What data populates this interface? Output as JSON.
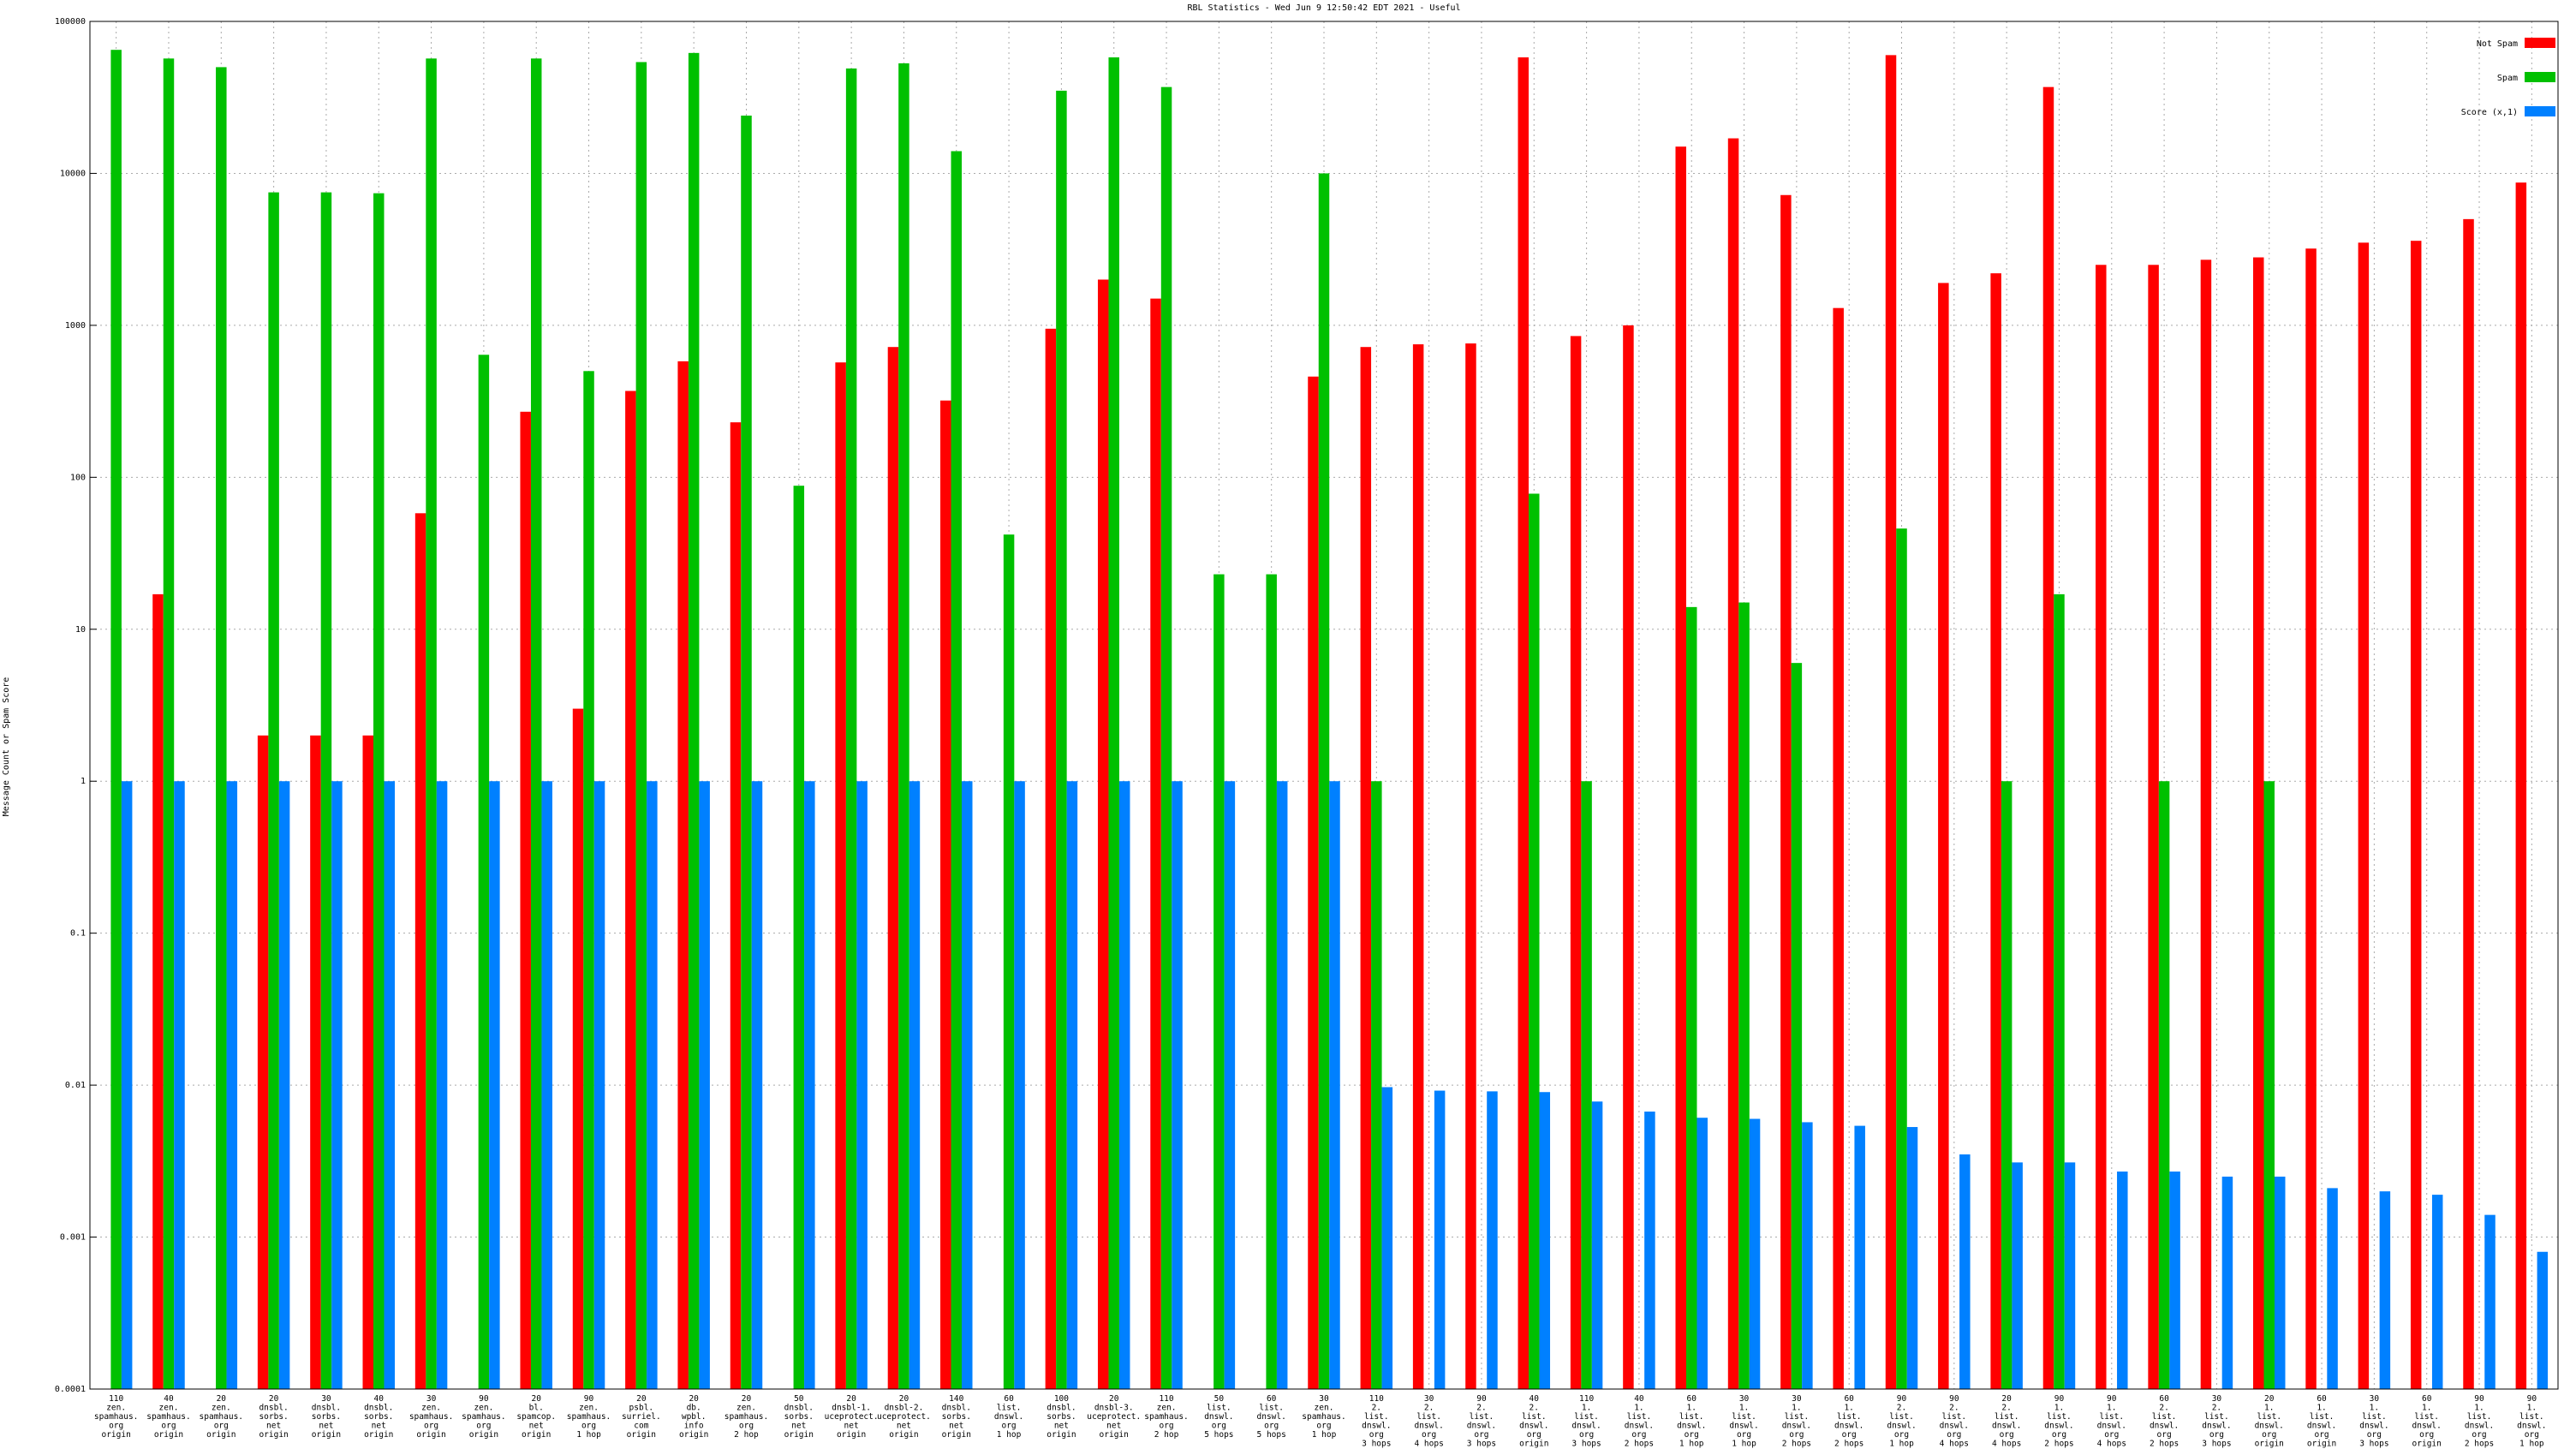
{
  "chart_data": {
    "type": "bar",
    "title": "RBL Statistics - Wed Jun  9 12:50:42 EDT 2021 - Useful",
    "y_label": "Message Count or Spam Score",
    "log_scale": true,
    "grid": true,
    "legend_position": "upper right",
    "ylim": [
      0.0001,
      100000
    ],
    "yticks": [
      0.0001,
      0.001,
      0.01,
      0.1,
      1,
      10,
      100,
      1000,
      10000,
      100000
    ],
    "categories": [
      [
        "110",
        "zen.",
        "spamhaus.",
        "org",
        "origin"
      ],
      [
        "40",
        "zen.",
        "spamhaus.",
        "org",
        "origin"
      ],
      [
        "20",
        "zen.",
        "spamhaus.",
        "org",
        "origin"
      ],
      [
        "20",
        "dnsbl.",
        "sorbs.",
        "net",
        "origin"
      ],
      [
        "30",
        "dnsbl.",
        "sorbs.",
        "net",
        "origin"
      ],
      [
        "40",
        "dnsbl.",
        "sorbs.",
        "net",
        "origin"
      ],
      [
        "30",
        "zen.",
        "spamhaus.",
        "org",
        "origin"
      ],
      [
        "90",
        "zen.",
        "spamhaus.",
        "org",
        "origin"
      ],
      [
        "20",
        "bl.",
        "spamcop.",
        "net",
        "origin"
      ],
      [
        "90",
        "zen.",
        "spamhaus.",
        "org",
        "1 hop"
      ],
      [
        "20",
        "psbl.",
        "surriel.",
        "com",
        "origin"
      ],
      [
        "20",
        "db.",
        "wpbl.",
        "info",
        "origin"
      ],
      [
        "20",
        "zen.",
        "spamhaus.",
        "org",
        "2 hop"
      ],
      [
        "50",
        "dnsbl.",
        "sorbs.",
        "net",
        "origin"
      ],
      [
        "20",
        "dnsbl-1.",
        "uceprotect.",
        "net",
        "origin"
      ],
      [
        "20",
        "dnsbl-2.",
        "uceprotect.",
        "net",
        "origin"
      ],
      [
        "140",
        "dnsbl.",
        "sorbs.",
        "net",
        "origin"
      ],
      [
        "60",
        "list.",
        "dnswl.",
        "org",
        "1 hop"
      ],
      [
        "100",
        "dnsbl.",
        "sorbs.",
        "net",
        "origin"
      ],
      [
        "20",
        "dnsbl-3.",
        "uceprotect.",
        "net",
        "origin"
      ],
      [
        "110",
        "zen.",
        "spamhaus.",
        "org",
        "2 hop"
      ],
      [
        "50",
        "list.",
        "dnswl.",
        "org",
        "5 hops"
      ],
      [
        "60",
        "list.",
        "dnswl.",
        "org",
        "5 hops"
      ],
      [
        "30",
        "zen.",
        "spamhaus.",
        "org",
        "1 hop"
      ],
      [
        "110",
        "2.",
        "list.",
        "dnswl.",
        "org",
        "3 hops"
      ],
      [
        "30",
        "2.",
        "list.",
        "dnswl.",
        "org",
        "4 hops"
      ],
      [
        "90",
        "2.",
        "list.",
        "dnswl.",
        "org",
        "3 hops"
      ],
      [
        "40",
        "2.",
        "list.",
        "dnswl.",
        "org",
        "origin"
      ],
      [
        "110",
        "1.",
        "list.",
        "dnswl.",
        "org",
        "3 hops"
      ],
      [
        "40",
        "1.",
        "list.",
        "dnswl.",
        "org",
        "2 hops"
      ],
      [
        "60",
        "1.",
        "list.",
        "dnswl.",
        "org",
        "1 hop"
      ],
      [
        "30",
        "1.",
        "list.",
        "dnswl.",
        "org",
        "1 hop"
      ],
      [
        "30",
        "1.",
        "list.",
        "dnswl.",
        "org",
        "2 hops"
      ],
      [
        "60",
        "1.",
        "list.",
        "dnswl.",
        "org",
        "2 hops"
      ],
      [
        "90",
        "2.",
        "list.",
        "dnswl.",
        "org",
        "1 hop"
      ],
      [
        "90",
        "2.",
        "list.",
        "dnswl.",
        "org",
        "4 hops"
      ],
      [
        "20",
        "2.",
        "list.",
        "dnswl.",
        "org",
        "4 hops"
      ],
      [
        "90",
        "1.",
        "list.",
        "dnswl.",
        "org",
        "2 hops"
      ],
      [
        "90",
        "1.",
        "list.",
        "dnswl.",
        "org",
        "4 hops"
      ],
      [
        "60",
        "2.",
        "list.",
        "dnswl.",
        "org",
        "2 hops"
      ],
      [
        "30",
        "2.",
        "list.",
        "dnswl.",
        "org",
        "3 hops"
      ],
      [
        "20",
        "1.",
        "list.",
        "dnswl.",
        "org",
        "origin"
      ],
      [
        "60",
        "1.",
        "list.",
        "dnswl.",
        "org",
        "origin"
      ],
      [
        "30",
        "1.",
        "list.",
        "dnswl.",
        "org",
        "3 hops"
      ],
      [
        "60",
        "1.",
        "list.",
        "dnswl.",
        "org",
        "origin"
      ],
      [
        "90",
        "1.",
        "list.",
        "dnswl.",
        "org",
        "2 hops"
      ],
      [
        "90",
        "1.",
        "list.",
        "dnswl.",
        "org",
        "1 hop"
      ]
    ],
    "series": [
      {
        "name": "Not Spam",
        "color": "#ff0000",
        "values": [
          null,
          17,
          null,
          2,
          2,
          2,
          58,
          null,
          270,
          3,
          370,
          580,
          230,
          null,
          570,
          720,
          320,
          null,
          950,
          2000,
          1500,
          null,
          null,
          460,
          720,
          750,
          760,
          58000,
          850,
          1000,
          15000,
          17000,
          7200,
          1300,
          60000,
          1900,
          2200,
          37000,
          2500,
          2500,
          2700,
          2800,
          3200,
          3500,
          3600,
          5000,
          8700
        ]
      },
      {
        "name": "Spam",
        "color": "#00c000",
        "values": [
          65000,
          57000,
          50000,
          7500,
          7500,
          7400,
          57000,
          640,
          57000,
          500,
          54000,
          62000,
          24000,
          88,
          49000,
          53000,
          14000,
          42,
          35000,
          58000,
          37000,
          23,
          23,
          10000,
          1,
          null,
          null,
          78,
          1,
          null,
          14,
          15,
          6,
          null,
          46,
          null,
          1,
          17,
          null,
          1,
          null,
          1,
          null,
          null,
          null,
          null,
          null
        ]
      },
      {
        "name": "Score (x,1)",
        "color": "#0080ff",
        "values": [
          1,
          1,
          1,
          1,
          1,
          1,
          1,
          1,
          1,
          1,
          1,
          1,
          1,
          1,
          1,
          1,
          1,
          1,
          1,
          1,
          1,
          1,
          1,
          1,
          0.0097,
          0.0092,
          0.0091,
          0.009,
          0.0078,
          0.0067,
          0.0061,
          0.006,
          0.0057,
          0.0054,
          0.0053,
          0.0035,
          0.0031,
          0.0031,
          0.0027,
          0.0027,
          0.0025,
          0.0025,
          0.0021,
          0.002,
          0.0019,
          0.0014,
          0.0008
        ]
      }
    ]
  }
}
